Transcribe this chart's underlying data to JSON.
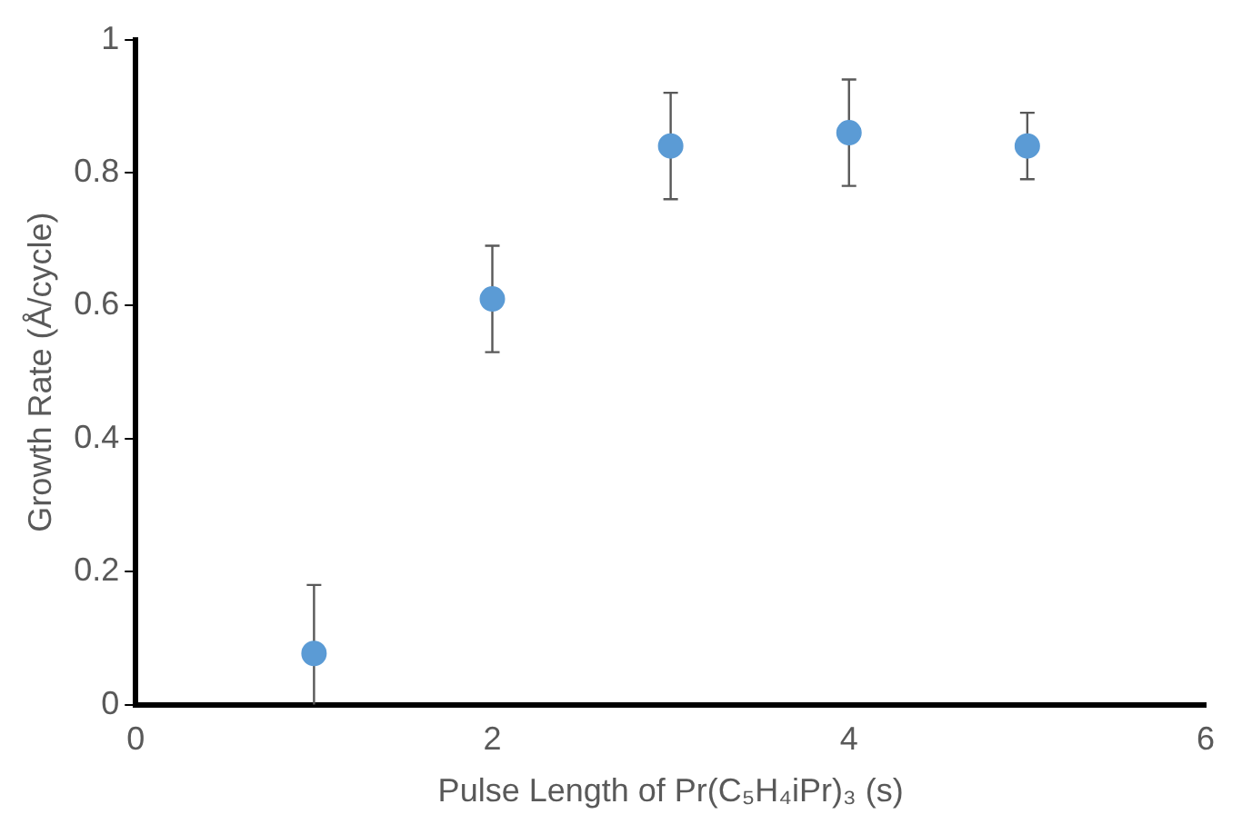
{
  "chart_data": {
    "type": "scatter",
    "xlabel": "Pulse Length of Pr(C₅H₄iPr)₃ (s)",
    "ylabel": "Growth Rate (Å/cycle)",
    "x": [
      1,
      2,
      3,
      4,
      5
    ],
    "values": [
      0.077,
      0.61,
      0.84,
      0.86,
      0.84
    ],
    "errors": [
      [
        0,
        0.18
      ],
      [
        0.53,
        0.69
      ],
      [
        0.76,
        0.92
      ],
      [
        0.78,
        0.94
      ],
      [
        0.79,
        0.89
      ]
    ],
    "color": "#5b9bd5",
    "marker": "circle",
    "xlim": [
      0,
      6
    ],
    "xticks": [
      0,
      2,
      4,
      6
    ],
    "ylim": [
      0,
      1
    ],
    "yticks": [
      0,
      0.2,
      0.4,
      0.6,
      0.8,
      1
    ],
    "grid": false,
    "legend": false
  }
}
